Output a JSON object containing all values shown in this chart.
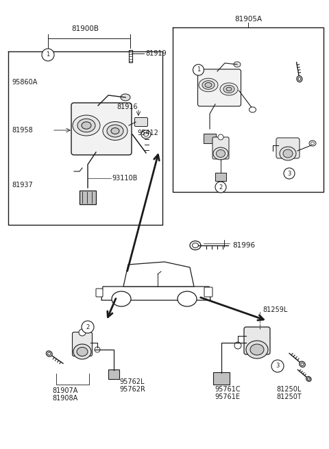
{
  "bg_color": "#ffffff",
  "line_color": "#1a1a1a",
  "fig_width": 4.8,
  "fig_height": 6.55,
  "dpi": 100,
  "labels": {
    "top_label": "81905A",
    "label_81900B": "81900B",
    "label_81919": "81919",
    "label_95860A": "95860A",
    "label_81916": "81916",
    "label_95412": "95412",
    "label_81958": "81958",
    "label_81937": "81937",
    "label_93110B": "93110B",
    "label_81996": "81996",
    "label_81907A": "81907A",
    "label_81908A": "81908A",
    "label_95762L": "95762L",
    "label_95762R": "95762R",
    "label_81259L": "81259L",
    "label_95761C": "95761C",
    "label_95761E": "95761E",
    "label_81250L": "81250L",
    "label_81250T": "81250T"
  }
}
